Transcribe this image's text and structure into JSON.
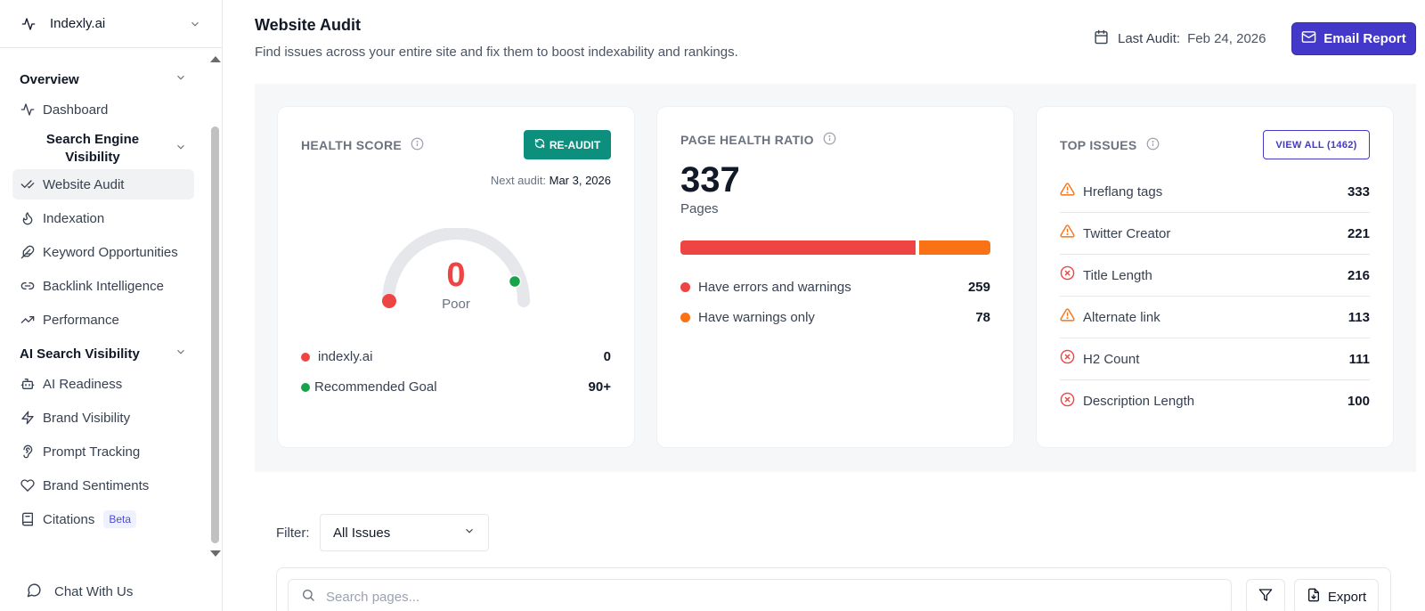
{
  "workspace": {
    "name": "Indexly.ai",
    "icon": "activity-icon"
  },
  "sidebar": {
    "sections": [
      {
        "title": "Overview"
      },
      {
        "title": "AI Search Visibility"
      }
    ],
    "overview_items": [
      {
        "label": "Dashboard",
        "icon": "activity-icon"
      }
    ],
    "sub_section": {
      "label": "Search Engine Visibility"
    },
    "sev_items": [
      {
        "label": "Website Audit",
        "icon": "check-check-icon",
        "active": true
      },
      {
        "label": "Indexation",
        "icon": "flame-icon"
      },
      {
        "label": "Keyword Opportunities",
        "icon": "feather-icon"
      },
      {
        "label": "Backlink Intelligence",
        "icon": "link-icon"
      },
      {
        "label": "Performance",
        "icon": "trending-up-icon"
      }
    ],
    "ai_items": [
      {
        "label": "AI Readiness",
        "icon": "bot-icon"
      },
      {
        "label": "Brand Visibility",
        "icon": "zap-icon"
      },
      {
        "label": "Prompt Tracking",
        "icon": "ear-icon"
      },
      {
        "label": "Brand Sentiments",
        "icon": "heart-icon"
      },
      {
        "label": "Citations",
        "icon": "book-icon",
        "badge": "Beta"
      }
    ],
    "chat_label": "Chat With Us"
  },
  "header": {
    "title": "Website Audit",
    "subtitle": "Find issues across your entire site and fix them to boost indexability and rankings.",
    "last_audit_label": "Last Audit:",
    "last_audit_date": "Feb 24, 2026",
    "email_button": "Email Report"
  },
  "health_score": {
    "title": "HEALTH SCORE",
    "reaudit_label": "RE-AUDIT",
    "next_audit_label": "Next audit:",
    "next_audit_date": "Mar 3, 2026",
    "score": "0",
    "score_label": "Poor",
    "site_label": "indexly.ai",
    "site_value": "0",
    "goal_label": "Recommended Goal",
    "goal_value": "90+",
    "colors": {
      "poor": "#ef4444",
      "goal": "#16a34a"
    }
  },
  "page_health": {
    "title": "PAGE HEALTH RATIO",
    "total": "337",
    "unit": "Pages",
    "errors_label": "Have errors and warnings",
    "errors_value": "259",
    "warnings_label": "Have warnings only",
    "warnings_value": "78",
    "colors": {
      "errors": "#ef4444",
      "warnings": "#f97316"
    }
  },
  "top_issues": {
    "title": "TOP ISSUES",
    "view_all": "VIEW ALL (1462)",
    "items": [
      {
        "label": "Hreflang tags",
        "count": "333",
        "severity": "warning"
      },
      {
        "label": "Twitter Creator",
        "count": "221",
        "severity": "warning"
      },
      {
        "label": "Title Length",
        "count": "216",
        "severity": "error"
      },
      {
        "label": "Alternate link",
        "count": "113",
        "severity": "warning"
      },
      {
        "label": "H2 Count",
        "count": "111",
        "severity": "error"
      },
      {
        "label": "Description Length",
        "count": "100",
        "severity": "error"
      }
    ]
  },
  "filter": {
    "label": "Filter:",
    "selected": "All Issues",
    "search_placeholder": "Search pages...",
    "export_label": "Export"
  }
}
